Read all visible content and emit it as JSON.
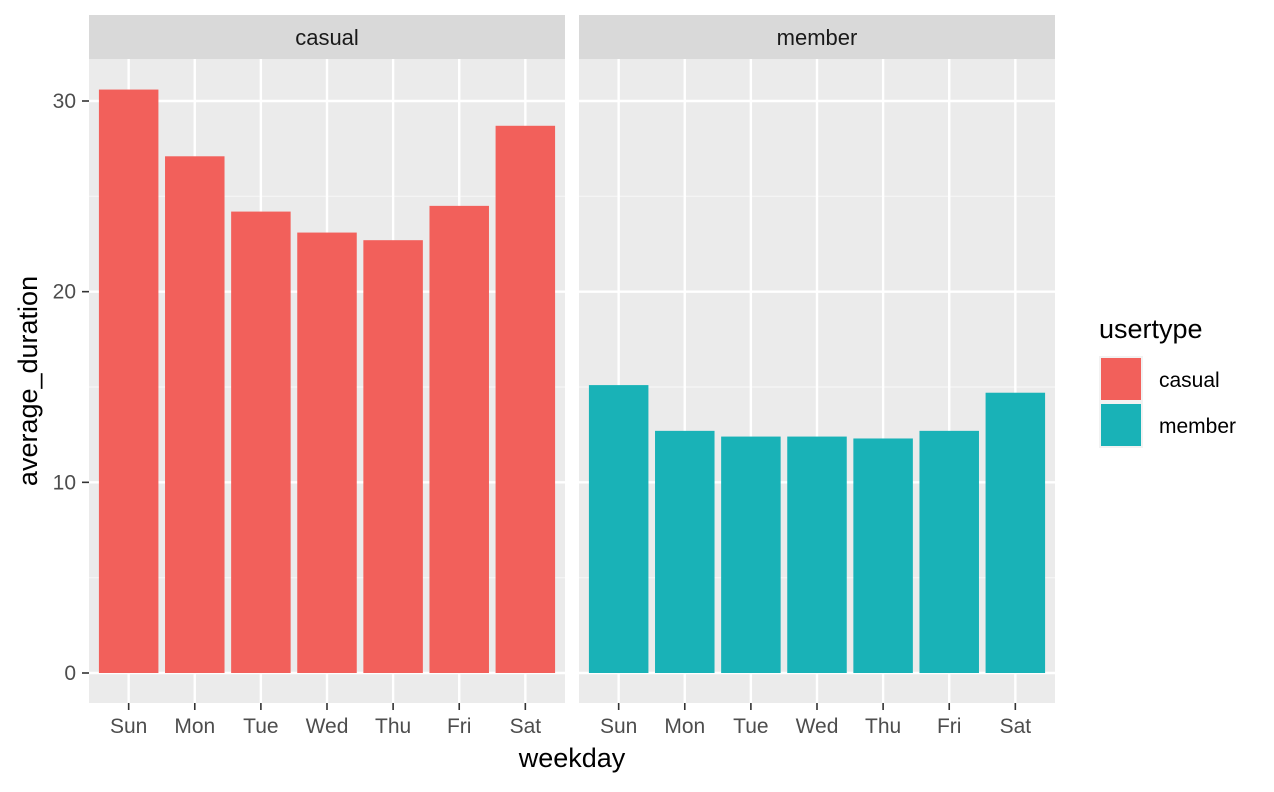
{
  "chart_data": {
    "type": "bar",
    "facet_by": "usertype",
    "xlabel": "weekday",
    "ylabel": "average_duration",
    "categories": [
      "Sun",
      "Mon",
      "Tue",
      "Wed",
      "Thu",
      "Fri",
      "Sat"
    ],
    "ylim": [
      0,
      32
    ],
    "yticks": [
      0,
      10,
      20,
      30
    ],
    "grid": true,
    "legend": {
      "title": "usertype",
      "placement": "right",
      "entries": [
        "casual",
        "member"
      ]
    },
    "series": [
      {
        "name": "casual",
        "color": "#F2605B",
        "values": [
          30.6,
          27.1,
          24.2,
          23.1,
          22.7,
          24.5,
          28.7
        ]
      },
      {
        "name": "member",
        "color": "#19B2B7",
        "values": [
          15.1,
          12.7,
          12.4,
          12.4,
          12.3,
          12.7,
          14.7
        ]
      }
    ]
  }
}
